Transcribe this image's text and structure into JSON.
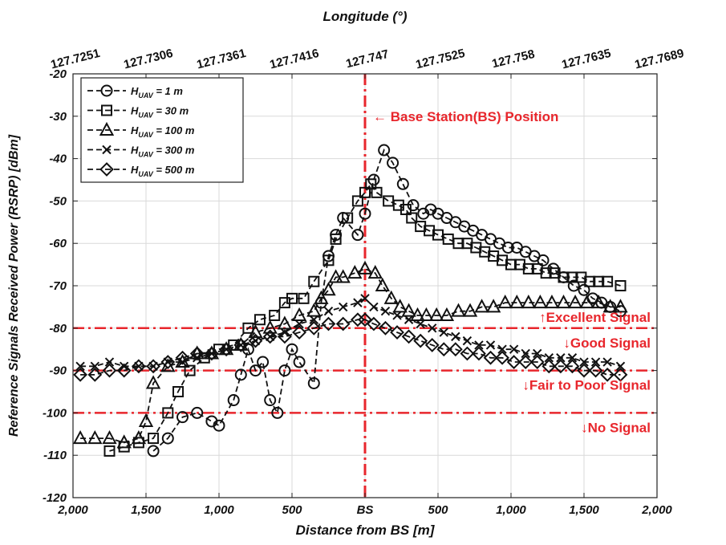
{
  "chart_data": {
    "type": "line",
    "xlabel": "Distance from BS [m]",
    "ylabel": "Reference Signals Received Power (RSRP) [dBm]",
    "x2label": "Longitude (°)",
    "xlim": [
      -2000,
      2000
    ],
    "ylim": [
      -120,
      -20
    ],
    "x_ticks": [
      -2000,
      -1500,
      -1000,
      -500,
      0,
      500,
      1000,
      1500,
      2000
    ],
    "x_tick_labels": [
      "2,000",
      "1,500",
      "1,000",
      "500",
      "BS",
      "500",
      "1,000",
      "1,500",
      "2,000"
    ],
    "y_ticks": [
      -120,
      -110,
      -100,
      -90,
      -80,
      -70,
      -60,
      -50,
      -40,
      -30,
      -20
    ],
    "top_tick_labels": [
      "127.7251",
      "127.7306",
      "127.7361",
      "127.7416",
      "127.747",
      "127.7525",
      "127.758",
      "127.7635",
      "127.7689"
    ],
    "grid": true,
    "legend_position": "top-left",
    "series": [
      {
        "name_base": "H",
        "name_sub": "UAV",
        "name_value": " = 1 m",
        "marker": "circle",
        "points": [
          [
            -1450,
            -109
          ],
          [
            -1350,
            -106
          ],
          [
            -1250,
            -101
          ],
          [
            -1150,
            -100
          ],
          [
            -1050,
            -102
          ],
          [
            -1000,
            -103
          ],
          [
            -900,
            -97
          ],
          [
            -850,
            -91
          ],
          [
            -800,
            -85
          ],
          [
            -750,
            -90
          ],
          [
            -700,
            -88
          ],
          [
            -650,
            -97
          ],
          [
            -600,
            -100
          ],
          [
            -550,
            -90
          ],
          [
            -500,
            -85
          ],
          [
            -450,
            -88
          ],
          [
            -350,
            -93
          ],
          [
            -300,
            -74
          ],
          [
            -250,
            -63
          ],
          [
            -200,
            -58
          ],
          [
            -150,
            -54
          ],
          [
            -50,
            -58
          ],
          [
            0,
            -53
          ],
          [
            60,
            -45
          ],
          [
            130,
            -38
          ],
          [
            190,
            -41
          ],
          [
            260,
            -46
          ],
          [
            330,
            -51
          ],
          [
            400,
            -53
          ],
          [
            450,
            -52
          ],
          [
            500,
            -53
          ],
          [
            560,
            -54
          ],
          [
            620,
            -55
          ],
          [
            680,
            -56
          ],
          [
            740,
            -57
          ],
          [
            800,
            -58
          ],
          [
            860,
            -59
          ],
          [
            920,
            -60
          ],
          [
            980,
            -61
          ],
          [
            1040,
            -61
          ],
          [
            1100,
            -62
          ],
          [
            1160,
            -63
          ],
          [
            1220,
            -64
          ],
          [
            1290,
            -66
          ],
          [
            1360,
            -68
          ],
          [
            1430,
            -70
          ],
          [
            1500,
            -71
          ],
          [
            1560,
            -73
          ],
          [
            1620,
            -74
          ],
          [
            1680,
            -75
          ],
          [
            1750,
            -76
          ]
        ]
      },
      {
        "name_base": "H",
        "name_sub": "UAV",
        "name_value": " = 30 m",
        "marker": "square",
        "points": [
          [
            -1750,
            -109
          ],
          [
            -1650,
            -108
          ],
          [
            -1550,
            -107
          ],
          [
            -1450,
            -106
          ],
          [
            -1350,
            -100
          ],
          [
            -1280,
            -95
          ],
          [
            -1200,
            -90
          ],
          [
            -1100,
            -87
          ],
          [
            -1000,
            -85
          ],
          [
            -900,
            -84
          ],
          [
            -800,
            -80
          ],
          [
            -720,
            -78
          ],
          [
            -620,
            -77
          ],
          [
            -550,
            -74
          ],
          [
            -500,
            -73
          ],
          [
            -420,
            -73
          ],
          [
            -350,
            -69
          ],
          [
            -250,
            -64
          ],
          [
            -200,
            -59
          ],
          [
            -120,
            -54
          ],
          [
            -50,
            -50
          ],
          [
            0,
            -48
          ],
          [
            40,
            -46
          ],
          [
            80,
            -48
          ],
          [
            160,
            -50
          ],
          [
            230,
            -51
          ],
          [
            280,
            -52
          ],
          [
            320,
            -54
          ],
          [
            380,
            -56
          ],
          [
            440,
            -57
          ],
          [
            500,
            -58
          ],
          [
            570,
            -59
          ],
          [
            640,
            -60
          ],
          [
            700,
            -60
          ],
          [
            760,
            -61
          ],
          [
            820,
            -62
          ],
          [
            880,
            -63
          ],
          [
            940,
            -64
          ],
          [
            1000,
            -65
          ],
          [
            1060,
            -65
          ],
          [
            1120,
            -66
          ],
          [
            1180,
            -66
          ],
          [
            1240,
            -67
          ],
          [
            1300,
            -67
          ],
          [
            1360,
            -68
          ],
          [
            1420,
            -68
          ],
          [
            1480,
            -68
          ],
          [
            1540,
            -69
          ],
          [
            1600,
            -69
          ],
          [
            1660,
            -69
          ],
          [
            1750,
            -70
          ]
        ]
      },
      {
        "name_base": "H",
        "name_sub": "UAV",
        "name_value": " = 100 m",
        "marker": "triangle",
        "points": [
          [
            -1950,
            -106
          ],
          [
            -1850,
            -106
          ],
          [
            -1750,
            -106
          ],
          [
            -1650,
            -107
          ],
          [
            -1550,
            -106
          ],
          [
            -1500,
            -102
          ],
          [
            -1450,
            -93
          ],
          [
            -1350,
            -89
          ],
          [
            -1250,
            -88
          ],
          [
            -1150,
            -86
          ],
          [
            -1050,
            -86
          ],
          [
            -950,
            -85
          ],
          [
            -850,
            -84
          ],
          [
            -750,
            -81
          ],
          [
            -650,
            -80
          ],
          [
            -550,
            -79
          ],
          [
            -450,
            -77
          ],
          [
            -350,
            -76
          ],
          [
            -300,
            -73
          ],
          [
            -250,
            -71
          ],
          [
            -200,
            -68
          ],
          [
            -150,
            -68
          ],
          [
            -70,
            -67
          ],
          [
            0,
            -66
          ],
          [
            70,
            -67
          ],
          [
            120,
            -70
          ],
          [
            180,
            -73
          ],
          [
            240,
            -75
          ],
          [
            300,
            -76
          ],
          [
            360,
            -77
          ],
          [
            420,
            -77
          ],
          [
            490,
            -77
          ],
          [
            560,
            -77
          ],
          [
            640,
            -76
          ],
          [
            720,
            -76
          ],
          [
            800,
            -75
          ],
          [
            880,
            -75
          ],
          [
            960,
            -74
          ],
          [
            1040,
            -74
          ],
          [
            1120,
            -74
          ],
          [
            1200,
            -74
          ],
          [
            1280,
            -74
          ],
          [
            1360,
            -74
          ],
          [
            1440,
            -74
          ],
          [
            1520,
            -74
          ],
          [
            1600,
            -74
          ],
          [
            1680,
            -75
          ],
          [
            1750,
            -75
          ]
        ]
      },
      {
        "name_base": "H",
        "name_sub": "UAV",
        "name_value": " = 300 m",
        "marker": "x",
        "points": [
          [
            -1950,
            -89
          ],
          [
            -1850,
            -89
          ],
          [
            -1750,
            -88
          ],
          [
            -1650,
            -89
          ],
          [
            -1550,
            -89
          ],
          [
            -1450,
            -89
          ],
          [
            -1350,
            -88
          ],
          [
            -1250,
            -88
          ],
          [
            -1150,
            -87
          ],
          [
            -1050,
            -86
          ],
          [
            -950,
            -85
          ],
          [
            -850,
            -84
          ],
          [
            -750,
            -83
          ],
          [
            -650,
            -82
          ],
          [
            -550,
            -81
          ],
          [
            -450,
            -79
          ],
          [
            -350,
            -78
          ],
          [
            -250,
            -76
          ],
          [
            -150,
            -75
          ],
          [
            -50,
            -74
          ],
          [
            0,
            -73
          ],
          [
            60,
            -75
          ],
          [
            140,
            -76
          ],
          [
            220,
            -77
          ],
          [
            300,
            -78
          ],
          [
            380,
            -79
          ],
          [
            460,
            -80
          ],
          [
            540,
            -81
          ],
          [
            620,
            -82
          ],
          [
            700,
            -83
          ],
          [
            780,
            -84
          ],
          [
            860,
            -84
          ],
          [
            940,
            -85
          ],
          [
            1020,
            -85
          ],
          [
            1100,
            -86
          ],
          [
            1180,
            -86
          ],
          [
            1260,
            -87
          ],
          [
            1340,
            -87
          ],
          [
            1420,
            -87
          ],
          [
            1500,
            -88
          ],
          [
            1580,
            -88
          ],
          [
            1660,
            -88
          ],
          [
            1750,
            -89
          ]
        ]
      },
      {
        "name_base": "H",
        "name_sub": "UAV",
        "name_value": " = 500 m",
        "marker": "diamond",
        "points": [
          [
            -1950,
            -91
          ],
          [
            -1850,
            -91
          ],
          [
            -1750,
            -90
          ],
          [
            -1650,
            -90
          ],
          [
            -1550,
            -89
          ],
          [
            -1450,
            -89
          ],
          [
            -1350,
            -88
          ],
          [
            -1250,
            -87
          ],
          [
            -1150,
            -86
          ],
          [
            -1050,
            -86
          ],
          [
            -950,
            -85
          ],
          [
            -850,
            -84
          ],
          [
            -750,
            -83
          ],
          [
            -650,
            -82
          ],
          [
            -550,
            -82
          ],
          [
            -450,
            -81
          ],
          [
            -350,
            -80
          ],
          [
            -250,
            -79
          ],
          [
            -150,
            -79
          ],
          [
            -50,
            -78
          ],
          [
            0,
            -78
          ],
          [
            60,
            -79
          ],
          [
            140,
            -80
          ],
          [
            220,
            -81
          ],
          [
            300,
            -82
          ],
          [
            380,
            -83
          ],
          [
            460,
            -84
          ],
          [
            540,
            -85
          ],
          [
            620,
            -85
          ],
          [
            700,
            -86
          ],
          [
            780,
            -86
          ],
          [
            860,
            -87
          ],
          [
            940,
            -87
          ],
          [
            1020,
            -88
          ],
          [
            1100,
            -88
          ],
          [
            1180,
            -88
          ],
          [
            1260,
            -89
          ],
          [
            1340,
            -89
          ],
          [
            1420,
            -89
          ],
          [
            1500,
            -90
          ],
          [
            1580,
            -90
          ],
          [
            1660,
            -91
          ],
          [
            1750,
            -91
          ]
        ]
      }
    ],
    "reference_lines": [
      {
        "orientation": "vertical",
        "value": 0,
        "label": "← Base Station(BS) Position",
        "label_y": -30
      },
      {
        "orientation": "horizontal",
        "value": -80,
        "label_above": "↑Excellent Signal",
        "label_below": "↓Good Signal"
      },
      {
        "orientation": "horizontal",
        "value": -90,
        "label_below": "↓Fair to Poor Signal"
      },
      {
        "orientation": "horizontal",
        "value": -100,
        "label_below": "↓No Signal"
      }
    ],
    "colors": {
      "series": "#111111",
      "reference": "#e8262c",
      "grid": "#d9d9d9"
    }
  }
}
